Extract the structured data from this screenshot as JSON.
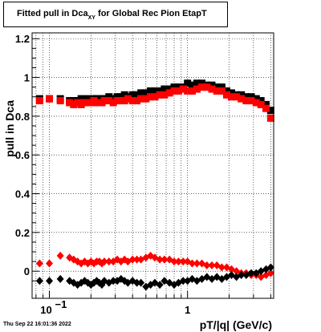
{
  "chart_data": {
    "type": "scatter",
    "title_main": "Fitted pull in Dca",
    "title_sub": "XY",
    "title_rest": " for Global Rec Pion EtapT",
    "xlabel": "pT/|q| (GeV/c)",
    "ylabel": "pull in Dca",
    "x_scale": "log",
    "xlim": [
      0.075,
      4.2
    ],
    "ylim": [
      -0.14,
      1.23
    ],
    "x_ticks": [
      {
        "v": 0.1,
        "base": "10",
        "exp": "−1"
      },
      {
        "v": 1,
        "label": "1"
      }
    ],
    "y_ticks": [
      {
        "v": 0,
        "label": "0"
      },
      {
        "v": 0.2,
        "label": "0.2"
      },
      {
        "v": 0.4,
        "label": "0.4"
      },
      {
        "v": 0.6,
        "label": "0.6"
      },
      {
        "v": 0.8,
        "label": "0.8"
      },
      {
        "v": 1,
        "label": "1"
      },
      {
        "v": 1.2,
        "label": "1.2"
      }
    ],
    "grid": true,
    "series": [
      {
        "marker": "square",
        "color": "#000000",
        "x": [
          0.085,
          0.1,
          0.12,
          0.14,
          0.15,
          0.16,
          0.17,
          0.18,
          0.19,
          0.2,
          0.21,
          0.22,
          0.23,
          0.24,
          0.25,
          0.27,
          0.29,
          0.31,
          0.33,
          0.35,
          0.37,
          0.4,
          0.43,
          0.46,
          0.5,
          0.54,
          0.58,
          0.63,
          0.68,
          0.74,
          0.8,
          0.86,
          0.93,
          1.0,
          1.08,
          1.17,
          1.27,
          1.38,
          1.5,
          1.63,
          1.77,
          1.92,
          2.08,
          2.26,
          2.45,
          2.66,
          2.89,
          3.14,
          3.4,
          3.7,
          4.0
        ],
        "y": [
          0.89,
          0.89,
          0.89,
          0.88,
          0.88,
          0.88,
          0.89,
          0.88,
          0.89,
          0.88,
          0.89,
          0.89,
          0.88,
          0.89,
          0.89,
          0.9,
          0.89,
          0.9,
          0.9,
          0.91,
          0.9,
          0.91,
          0.91,
          0.92,
          0.92,
          0.93,
          0.93,
          0.93,
          0.94,
          0.94,
          0.95,
          0.95,
          0.95,
          0.97,
          0.96,
          0.97,
          0.97,
          0.96,
          0.96,
          0.95,
          0.95,
          0.93,
          0.92,
          0.91,
          0.91,
          0.9,
          0.9,
          0.89,
          0.88,
          0.86,
          0.83
        ]
      },
      {
        "marker": "square",
        "color": "#ff0000",
        "x": [
          0.085,
          0.1,
          0.12,
          0.14,
          0.15,
          0.16,
          0.17,
          0.18,
          0.19,
          0.2,
          0.21,
          0.22,
          0.23,
          0.24,
          0.25,
          0.27,
          0.29,
          0.31,
          0.33,
          0.35,
          0.37,
          0.4,
          0.43,
          0.46,
          0.5,
          0.54,
          0.58,
          0.63,
          0.68,
          0.74,
          0.8,
          0.86,
          0.93,
          1.0,
          1.08,
          1.17,
          1.27,
          1.38,
          1.5,
          1.63,
          1.77,
          1.92,
          2.08,
          2.26,
          2.45,
          2.66,
          2.89,
          3.14,
          3.4,
          3.7,
          4.0
        ],
        "y": [
          0.88,
          0.89,
          0.88,
          0.87,
          0.86,
          0.87,
          0.86,
          0.87,
          0.87,
          0.87,
          0.88,
          0.87,
          0.87,
          0.87,
          0.88,
          0.88,
          0.87,
          0.88,
          0.88,
          0.88,
          0.89,
          0.88,
          0.88,
          0.89,
          0.89,
          0.9,
          0.9,
          0.91,
          0.91,
          0.92,
          0.93,
          0.93,
          0.94,
          0.93,
          0.93,
          0.94,
          0.95,
          0.95,
          0.94,
          0.93,
          0.93,
          0.91,
          0.9,
          0.9,
          0.89,
          0.88,
          0.88,
          0.87,
          0.86,
          0.84,
          0.79
        ]
      },
      {
        "marker": "diamond",
        "color": "#ff0000",
        "x": [
          0.085,
          0.1,
          0.12,
          0.14,
          0.15,
          0.16,
          0.17,
          0.18,
          0.19,
          0.2,
          0.21,
          0.22,
          0.23,
          0.24,
          0.25,
          0.27,
          0.29,
          0.31,
          0.33,
          0.35,
          0.37,
          0.4,
          0.43,
          0.46,
          0.5,
          0.54,
          0.58,
          0.63,
          0.68,
          0.74,
          0.8,
          0.86,
          0.93,
          1.0,
          1.08,
          1.17,
          1.27,
          1.38,
          1.5,
          1.63,
          1.77,
          1.92,
          2.08,
          2.26,
          2.45,
          2.66,
          2.89,
          3.14,
          3.4,
          3.7,
          4.0
        ],
        "y": [
          0.04,
          0.04,
          0.08,
          0.07,
          0.06,
          0.05,
          0.04,
          0.05,
          0.04,
          0.05,
          0.04,
          0.05,
          0.05,
          0.04,
          0.05,
          0.05,
          0.05,
          0.06,
          0.05,
          0.06,
          0.05,
          0.06,
          0.06,
          0.06,
          0.07,
          0.08,
          0.07,
          0.06,
          0.06,
          0.06,
          0.05,
          0.05,
          0.05,
          0.05,
          0.04,
          0.04,
          0.04,
          0.03,
          0.03,
          0.03,
          0.02,
          0.02,
          0.01,
          0.0,
          -0.01,
          -0.01,
          -0.02,
          -0.02,
          -0.03,
          -0.02,
          -0.01
        ]
      },
      {
        "marker": "diamond",
        "color": "#000000",
        "x": [
          0.085,
          0.1,
          0.12,
          0.14,
          0.15,
          0.16,
          0.17,
          0.18,
          0.19,
          0.2,
          0.21,
          0.22,
          0.23,
          0.24,
          0.25,
          0.27,
          0.29,
          0.31,
          0.33,
          0.35,
          0.37,
          0.4,
          0.43,
          0.46,
          0.5,
          0.54,
          0.58,
          0.63,
          0.68,
          0.74,
          0.8,
          0.86,
          0.93,
          1.0,
          1.08,
          1.17,
          1.27,
          1.38,
          1.5,
          1.63,
          1.77,
          1.92,
          2.08,
          2.26,
          2.45,
          2.66,
          2.89,
          3.14,
          3.4,
          3.7,
          4.0
        ],
        "y": [
          -0.05,
          -0.05,
          -0.04,
          -0.05,
          -0.06,
          -0.07,
          -0.06,
          -0.05,
          -0.06,
          -0.07,
          -0.06,
          -0.05,
          -0.06,
          -0.07,
          -0.05,
          -0.06,
          -0.05,
          -0.05,
          -0.04,
          -0.05,
          -0.06,
          -0.05,
          -0.06,
          -0.06,
          -0.08,
          -0.07,
          -0.06,
          -0.07,
          -0.05,
          -0.06,
          -0.07,
          -0.06,
          -0.05,
          -0.05,
          -0.04,
          -0.05,
          -0.04,
          -0.03,
          -0.04,
          -0.03,
          -0.04,
          -0.03,
          -0.02,
          -0.03,
          -0.02,
          -0.02,
          -0.01,
          -0.01,
          0.0,
          0.01,
          0.02
        ]
      }
    ]
  },
  "timestamp": "Thu Sep 22 16:01:36 2022"
}
